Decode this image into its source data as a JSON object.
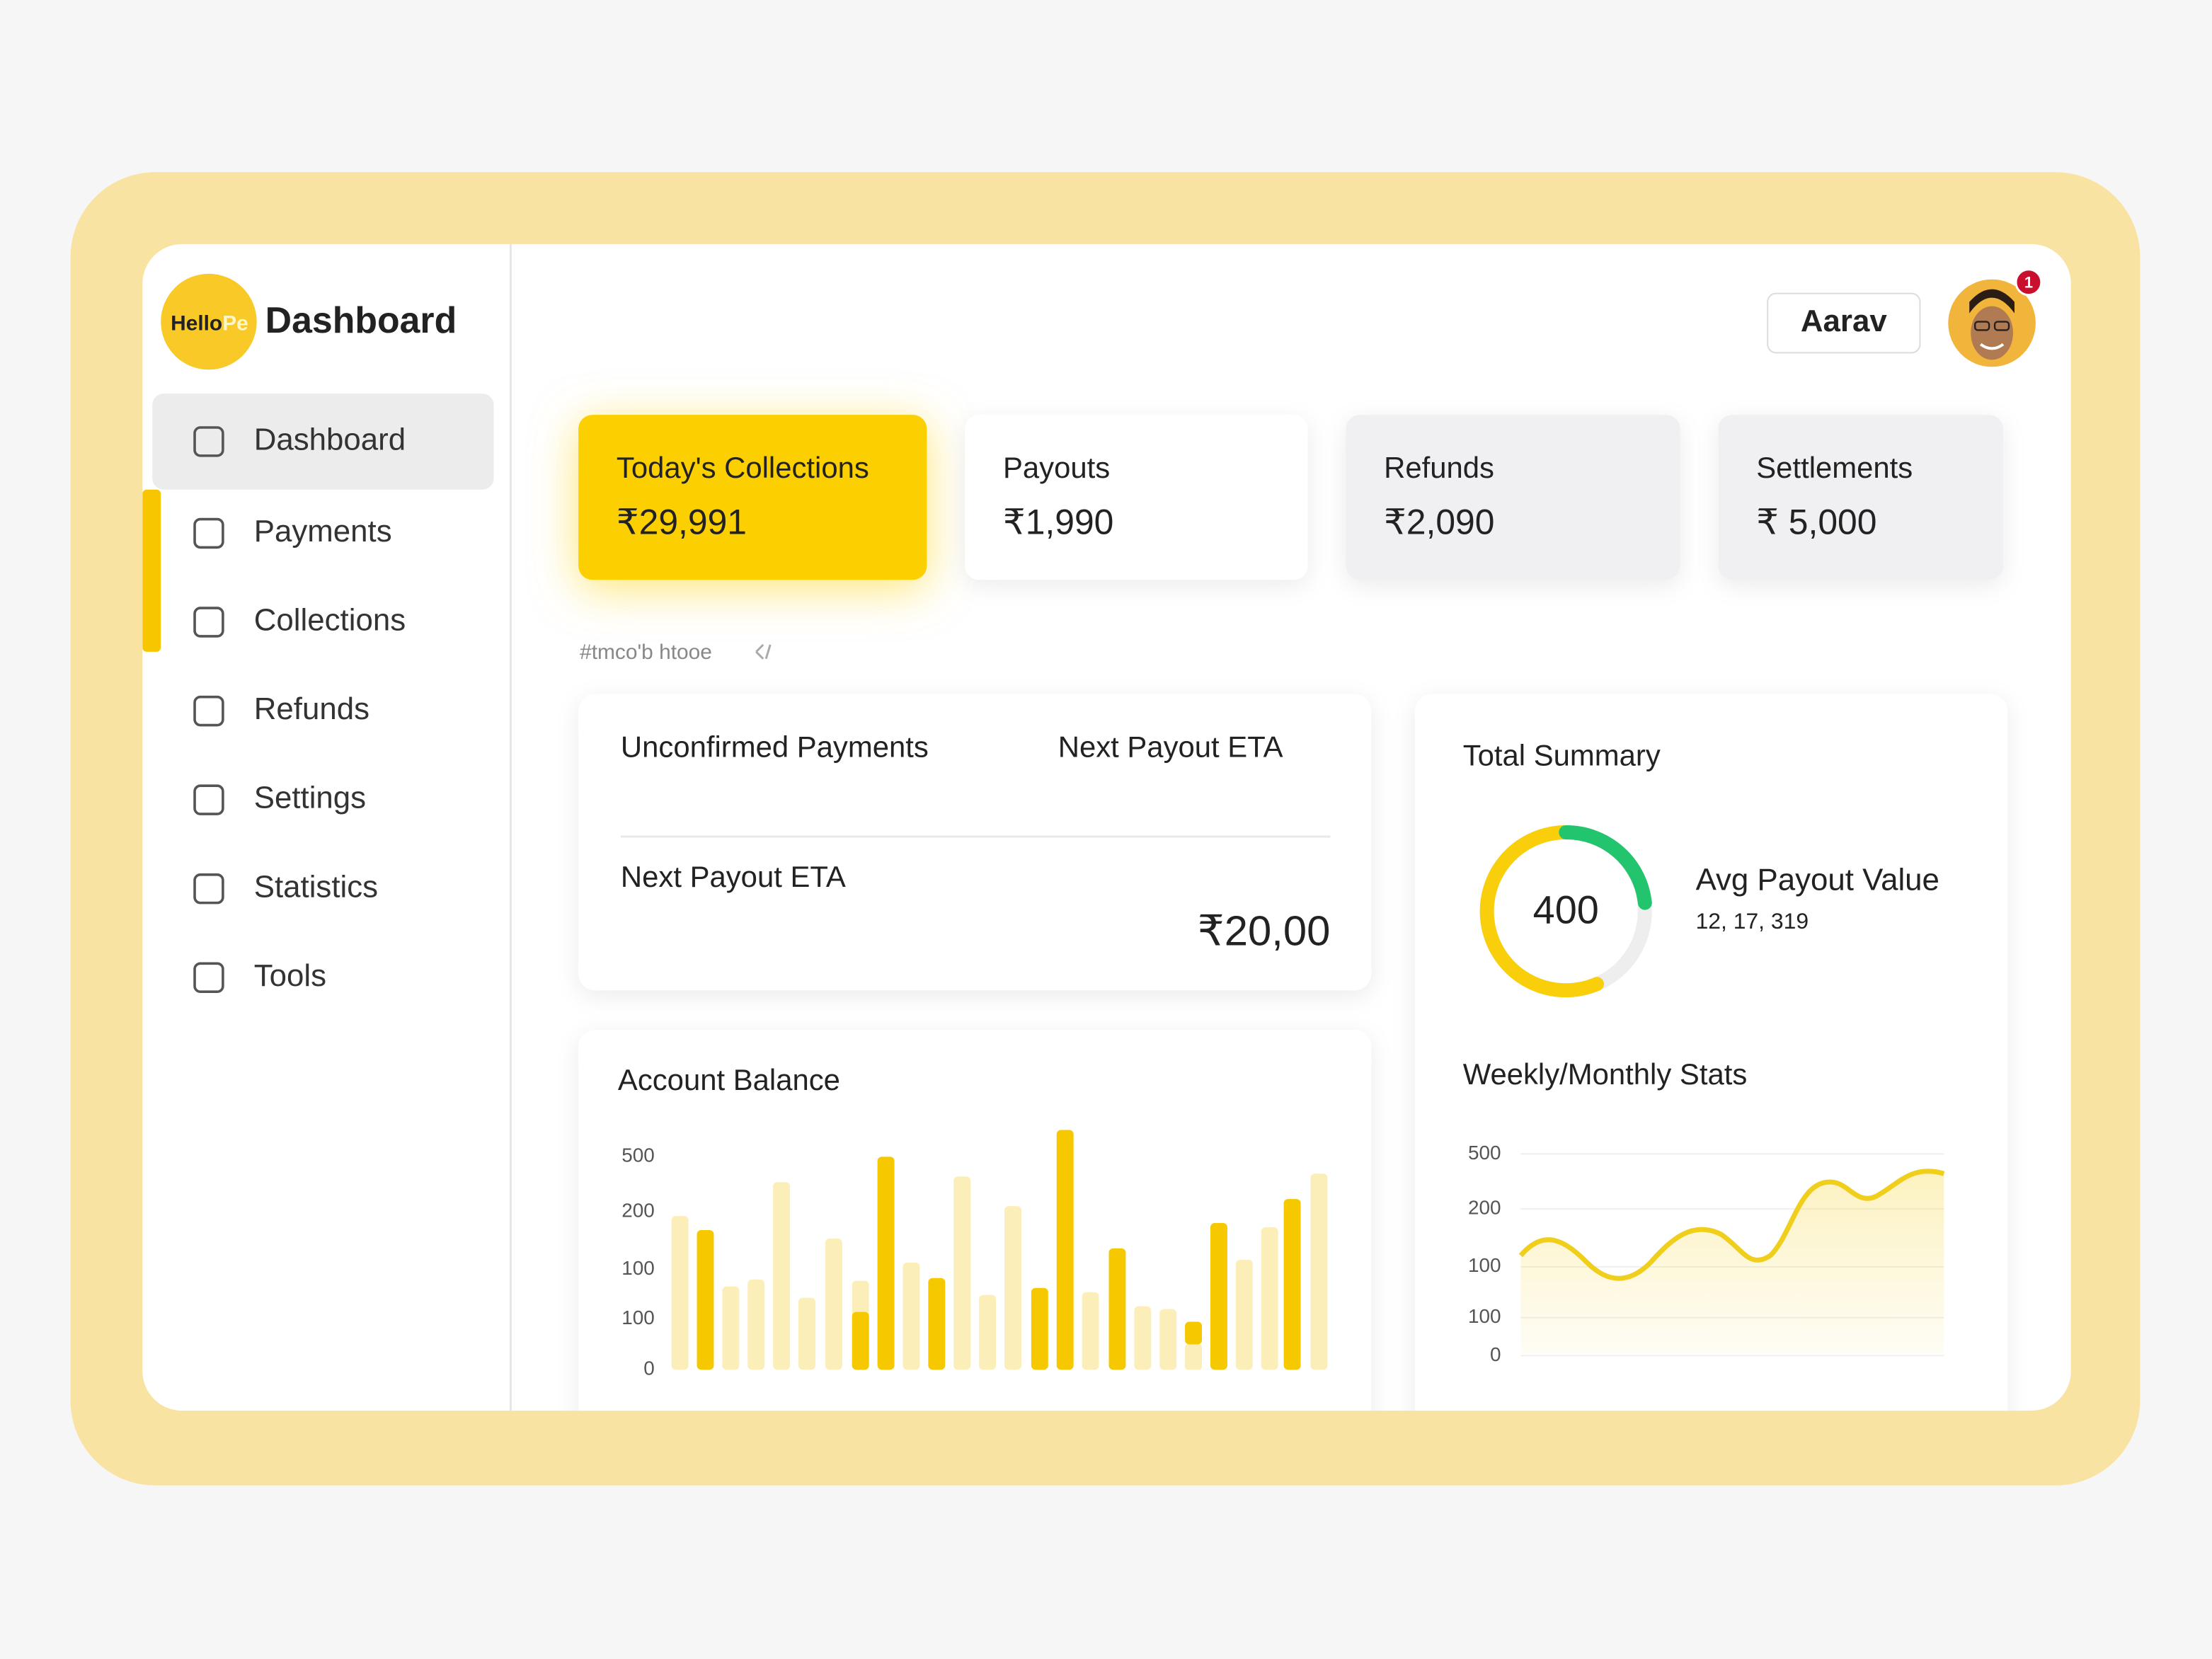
{
  "sidebar": {
    "logo": {
      "part1": "Hello",
      "part2": "Pe"
    },
    "title": "Dashboard",
    "nav": [
      "Dashboard",
      "Payments",
      "Collections",
      "Refunds",
      "Settings",
      "Statistics",
      "Tools"
    ]
  },
  "header": {
    "user": "Aarav",
    "notifications": "1"
  },
  "cards": [
    {
      "label": "Today's Collections",
      "value": "₹29,991"
    },
    {
      "label": "Payouts",
      "value": "₹1,990"
    },
    {
      "label": "Refunds",
      "value": "₹2,090"
    },
    {
      "label": "Settlements",
      "value": "₹ 5,000"
    }
  ],
  "section_label": "#tmco'b htooe",
  "unconfirmed": {
    "title": "Unconfirmed Payments",
    "eta_heading": "Next Payout ETA",
    "eta_label": "Next Payout ETA",
    "amount": "₹20,00"
  },
  "account_balance": {
    "title": "Account Balance",
    "axis_labels": [
      "500",
      "200",
      "100",
      "100",
      "0"
    ]
  },
  "total_summary": {
    "title": "Total Summary",
    "donut_value": "400",
    "avg_label": "Avg Payout Value",
    "avg_value": "12, 17, 319"
  },
  "stats": {
    "title": "Weekly/Monthly Stats",
    "axis_labels": [
      "500",
      "200",
      "100",
      "100",
      "0"
    ]
  }
}
